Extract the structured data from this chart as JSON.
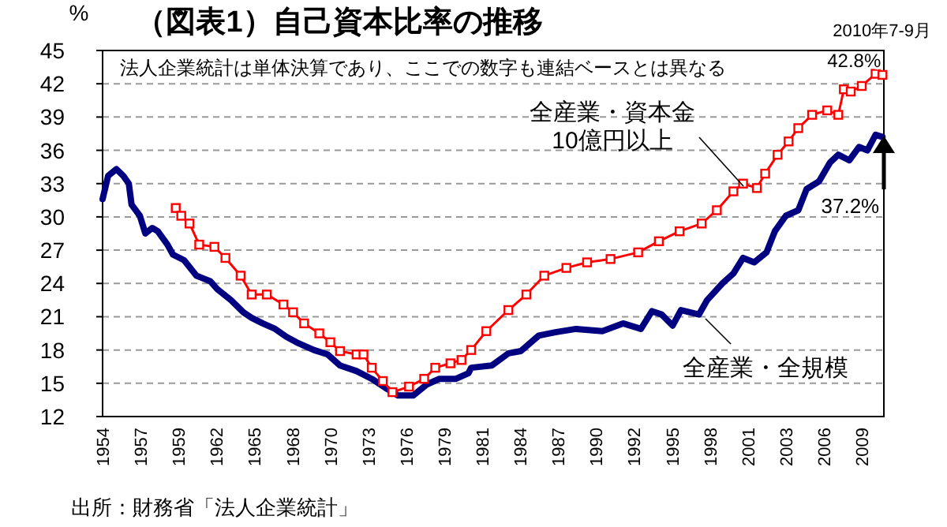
{
  "chart_data": {
    "type": "line",
    "title": "（図表1）自己資本比率の推移",
    "ylabel": "%",
    "annotations": [
      "2010年7-9月",
      "法人企業統計は単体決算であり、ここでの数字も連結ベースとは異なる",
      {
        "text": "42.8%",
        "x": 2010.5,
        "y": 42.8
      },
      {
        "text": "37.2%",
        "x": 2010.5,
        "y": 37.2
      },
      "出所：財務省「法人企業統計」"
    ],
    "xlim": [
      1954,
      2010.6
    ],
    "xticks": [
      {
        "value": 1954,
        "label": "1954"
      },
      {
        "value": 1956.75,
        "label": "1957"
      },
      {
        "value": 1959.5,
        "label": "1959"
      },
      {
        "value": 1962.25,
        "label": "1962"
      },
      {
        "value": 1965,
        "label": "1965"
      },
      {
        "value": 1967.75,
        "label": "1968"
      },
      {
        "value": 1970.5,
        "label": "1970"
      },
      {
        "value": 1973.25,
        "label": "1973"
      },
      {
        "value": 1976,
        "label": "1976"
      },
      {
        "value": 1978.75,
        "label": "1979"
      },
      {
        "value": 1981.5,
        "label": "1981"
      },
      {
        "value": 1984.25,
        "label": "1984"
      },
      {
        "value": 1987,
        "label": "1987"
      },
      {
        "value": 1989.75,
        "label": "1990"
      },
      {
        "value": 1992.5,
        "label": "1992"
      },
      {
        "value": 1995.25,
        "label": "1995"
      },
      {
        "value": 1998,
        "label": "1998"
      },
      {
        "value": 2000.75,
        "label": "2001"
      },
      {
        "value": 2003.5,
        "label": "2003"
      },
      {
        "value": 2006.25,
        "label": "2006"
      },
      {
        "value": 2009,
        "label": "2009"
      }
    ],
    "ylim": [
      12,
      45
    ],
    "yticks": [
      12,
      15,
      18,
      21,
      24,
      27,
      30,
      33,
      36,
      39,
      42,
      45
    ],
    "grid": "y",
    "line_style": "solid",
    "series": [
      {
        "name": "全産業・資本金\n10億円以上",
        "color": "#ff0000",
        "marker": "square",
        "x": [
          1959.3,
          1959.7,
          1960.3,
          1961.0,
          1962.1,
          1962.9,
          1964.0,
          1964.8,
          1965.9,
          1967.1,
          1967.8,
          1968.6,
          1969.7,
          1970.5,
          1971.2,
          1972.4,
          1972.9,
          1973.5,
          1974.3,
          1975.0,
          1976.2,
          1977.3,
          1978.1,
          1979.2,
          1980.0,
          1980.7,
          1981.8,
          1983.4,
          1984.7,
          1986.0,
          1987.6,
          1989.1,
          1990.8,
          1992.8,
          1994.3,
          1995.8,
          1997.4,
          1998.5,
          1999.7,
          2000.4,
          2001.4,
          2002.0,
          2002.9,
          2003.7,
          2004.4,
          2005.4,
          2006.5,
          2007.3,
          2007.7,
          2008.2,
          2009.0,
          2010.0,
          2010.5
        ],
        "values": [
          30.8,
          30.1,
          29.4,
          27.5,
          27.3,
          26.3,
          24.7,
          23.0,
          23.0,
          22.1,
          21.4,
          20.4,
          19.5,
          18.7,
          17.9,
          17.6,
          17.6,
          16.4,
          15.2,
          14.2,
          14.7,
          15.4,
          16.4,
          16.8,
          17.1,
          18.0,
          19.7,
          21.6,
          23.0,
          24.7,
          25.4,
          25.9,
          26.2,
          26.8,
          27.8,
          28.7,
          29.4,
          30.6,
          32.3,
          33.0,
          32.6,
          33.9,
          35.6,
          36.8,
          38.0,
          39.2,
          39.6,
          39.2,
          41.5,
          41.3,
          41.8,
          42.9,
          42.8
        ]
      },
      {
        "name": "全産業・全規模",
        "color": "#000080",
        "marker": "none",
        "x": [
          1954.0,
          1954.4,
          1955.0,
          1955.5,
          1955.9,
          1956.1,
          1956.7,
          1957.1,
          1957.6,
          1958.0,
          1958.7,
          1959.1,
          1959.9,
          1960.8,
          1961.8,
          1962.3,
          1963.3,
          1964.2,
          1964.8,
          1965.6,
          1966.5,
          1967.3,
          1968.2,
          1969.3,
          1970.3,
          1971.2,
          1972.4,
          1973.5,
          1974.6,
          1975.4,
          1976.5,
          1977.5,
          1978.4,
          1979.6,
          1980.5,
          1980.7,
          1982.2,
          1983.4,
          1984.3,
          1985.6,
          1986.8,
          1988.3,
          1990.2,
          1991.7,
          1993.0,
          1993.8,
          1994.5,
          1995.3,
          1995.9,
          1997.2,
          1997.8,
          1998.9,
          1999.7,
          2000.4,
          2001.2,
          2002.1,
          2002.7,
          2003.5,
          2004.4,
          2005.0,
          2005.9,
          2006.7,
          2007.3,
          2008.1,
          2008.8,
          2009.4,
          2010.0,
          2010.5
        ],
        "values": [
          31.6,
          33.7,
          34.3,
          33.7,
          33.0,
          31.1,
          30.1,
          28.5,
          29.0,
          28.7,
          27.5,
          26.6,
          26.1,
          24.7,
          24.2,
          23.5,
          22.5,
          21.4,
          20.9,
          20.4,
          19.9,
          19.2,
          18.6,
          18.0,
          17.6,
          16.6,
          16.1,
          15.4,
          14.5,
          13.9,
          13.9,
          14.9,
          15.4,
          15.4,
          15.9,
          16.4,
          16.6,
          17.7,
          17.9,
          19.3,
          19.6,
          19.9,
          19.7,
          20.4,
          19.9,
          21.5,
          21.2,
          20.2,
          21.6,
          21.2,
          22.5,
          24.0,
          24.9,
          26.3,
          25.9,
          26.8,
          28.7,
          30.1,
          30.6,
          32.5,
          33.2,
          34.9,
          35.6,
          35.1,
          36.3,
          36.0,
          37.4,
          37.2
        ]
      }
    ]
  }
}
